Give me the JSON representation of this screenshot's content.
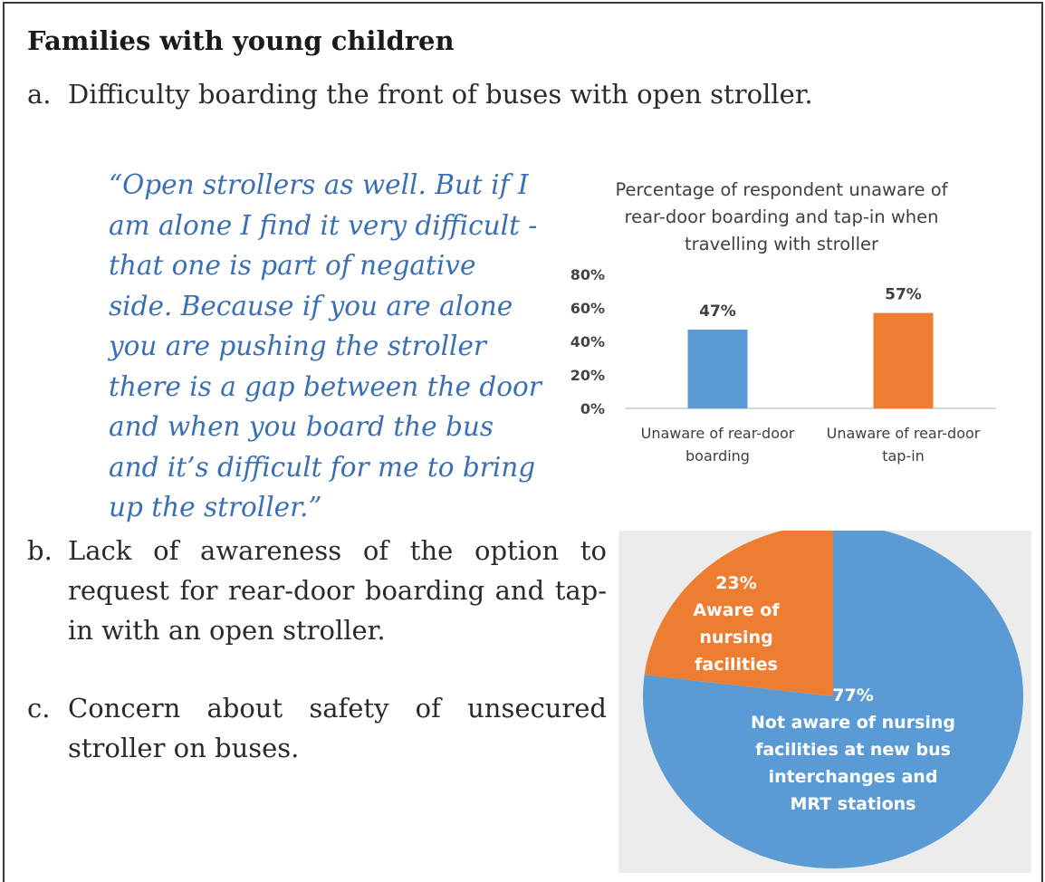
{
  "heading": "Families with young children",
  "items": [
    {
      "marker": "a.",
      "text": "Difficulty boarding the front of buses with open stroller."
    },
    {
      "marker": "b.",
      "text": "Lack of awareness of the option to request for rear-door boarding and tap-in with an open stroller."
    },
    {
      "marker": "c.",
      "text": "Concern about safety of unsecured stroller on buses."
    }
  ],
  "quote": "“Open strollers as well. But if I am alone I find it very difficult - that one is part of negative side. Because if you are alone you are pushing the stroller there is a gap between the door and when you board the bus and it’s difficult for me to bring up the stroller.”",
  "chart_data": [
    {
      "type": "bar",
      "title_lines": [
        "Percentage of respondent unaware of",
        "rear-door boarding and tap-in when",
        "travelling with stroller"
      ],
      "categories": [
        [
          "Unaware of rear-door",
          "boarding"
        ],
        [
          "Unaware of rear-door",
          "tap-in"
        ]
      ],
      "values": [
        47,
        57
      ],
      "data_labels": [
        "47%",
        "57%"
      ],
      "colors": [
        "#5b9bd5",
        "#ed7d31"
      ],
      "yticks": [
        "0%",
        "20%",
        "40%",
        "60%",
        "80%"
      ],
      "ylim": [
        0,
        80
      ],
      "grid": false
    },
    {
      "type": "pie",
      "slices": [
        {
          "value": 23,
          "label_lines": [
            "23%",
            "Aware of",
            "nursing",
            "facilities"
          ],
          "color": "#ed7d31"
        },
        {
          "value": 77,
          "label_lines": [
            "77%",
            "Not aware of nursing",
            "facilities at new bus",
            "interchanges and",
            "MRT stations"
          ],
          "color": "#5b9bd5"
        }
      ]
    }
  ]
}
